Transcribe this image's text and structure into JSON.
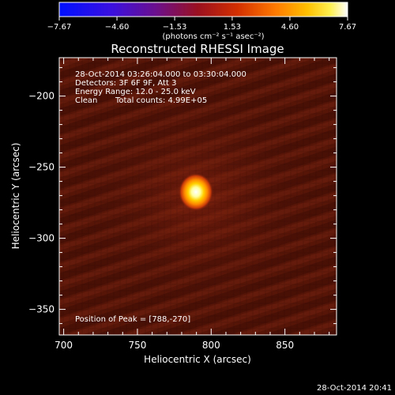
{
  "colorbar": {
    "ticks": [
      "-7.67",
      "-4.60",
      "-1.53",
      "1.53",
      "4.60",
      "7.67"
    ],
    "unit_label": "(photons cm⁻² s⁻¹ asec⁻²)",
    "range": [
      -7.67,
      7.67
    ]
  },
  "title": "Reconstructed RHESSI Image",
  "info": {
    "time_range": "28-Oct-2014 03:26:04.000 to 03:30:04.000",
    "detectors": "Detectors: 3F 6F 9F, Att 3",
    "energy": "Energy Range: 12.0 - 25.0 keV",
    "method": "Clean",
    "counts": "Total counts: 4.99E+05"
  },
  "peak_text": "Position of Peak = [788,-270]",
  "timestamp": "28-Oct-2014 20:41",
  "chart_data": {
    "type": "heatmap",
    "title": "Reconstructed RHESSI Image",
    "xlabel": "Heliocentric X (arcsec)",
    "ylabel": "Heliocentric Y (arcsec)",
    "xlim": [
      697,
      885
    ],
    "ylim": [
      -368,
      -173
    ],
    "xticks": [
      700,
      750,
      800,
      850
    ],
    "yticks": [
      -200,
      -250,
      -300,
      -350
    ],
    "peak": {
      "x": 788,
      "y": -270
    },
    "colormap": "rainbow-to-white (blue-purple-red-orange-yellow-white)",
    "grid": false
  },
  "colors": {
    "background": "#000000",
    "image_base": "#5a1608",
    "peak_core": "#ffffff"
  }
}
